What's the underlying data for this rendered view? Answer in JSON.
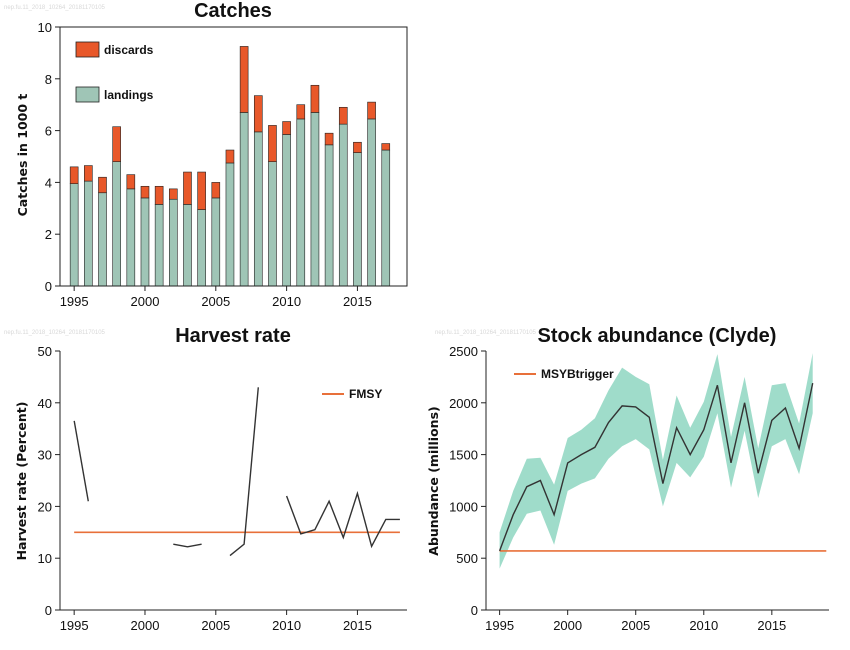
{
  "watermarks": [
    "nep.fu.11_2018_10264_20181170105",
    "nep.fu.11_2018_10264_20181170105",
    "nep.fu.11_2018_10264_20181170105"
  ],
  "colors": {
    "discards": "#e8582a",
    "landings": "#9fc5b6",
    "fmsy": "#e8703a",
    "msy": "#e8703a",
    "band": "#7fd0b8",
    "line": "#333333"
  },
  "chart_data": [
    {
      "type": "bar",
      "title": "Catches",
      "ylabel": "Catches in 1000 t",
      "xlim": [
        1994,
        2018.5
      ],
      "ylim": [
        0,
        10
      ],
      "xticks": [
        1995,
        2000,
        2005,
        2010,
        2015
      ],
      "yticks": [
        0,
        2,
        4,
        6,
        8,
        10
      ],
      "legend": "top-left",
      "categories": [
        1995,
        1996,
        1997,
        1998,
        1999,
        2000,
        2001,
        2002,
        2003,
        2004,
        2005,
        2006,
        2007,
        2008,
        2009,
        2010,
        2011,
        2012,
        2013,
        2014,
        2015,
        2016,
        2017
      ],
      "series": [
        {
          "name": "landings",
          "values": [
            3.95,
            4.05,
            3.6,
            4.8,
            3.75,
            3.4,
            3.15,
            3.35,
            3.15,
            2.95,
            3.4,
            4.75,
            6.7,
            5.95,
            4.8,
            5.85,
            6.45,
            6.7,
            5.45,
            6.25,
            5.15,
            6.45,
            5.25
          ]
        },
        {
          "name": "discards",
          "values": [
            0.65,
            0.6,
            0.6,
            1.35,
            0.55,
            0.45,
            0.7,
            0.4,
            1.25,
            1.45,
            0.6,
            0.5,
            2.55,
            1.4,
            1.4,
            0.5,
            0.55,
            1.05,
            0.45,
            0.65,
            0.4,
            0.65,
            0.25
          ]
        }
      ]
    },
    {
      "type": "line",
      "title": "Harvest rate",
      "ylabel": "Harvest rate (Percent)",
      "xlim": [
        1994,
        2018.5
      ],
      "ylim": [
        0,
        50
      ],
      "xticks": [
        1995,
        2000,
        2005,
        2010,
        2015
      ],
      "yticks": [
        0,
        10,
        20,
        30,
        40,
        50
      ],
      "legend": "top-right",
      "segments": [
        [
          [
            1995,
            36.5
          ],
          [
            1996,
            21
          ]
        ],
        [
          [
            2002,
            12.7
          ],
          [
            2003,
            12.2
          ],
          [
            2004,
            12.7
          ]
        ],
        [
          [
            2006,
            10.5
          ],
          [
            2007,
            12.7
          ],
          [
            2008,
            43
          ]
        ],
        [
          [
            2010,
            22
          ],
          [
            2011,
            14.7
          ],
          [
            2012,
            15.5
          ],
          [
            2013,
            21
          ],
          [
            2014,
            14
          ],
          [
            2015,
            22.5
          ],
          [
            2016,
            12.3
          ],
          [
            2017,
            17.5
          ],
          [
            2018,
            17.5
          ]
        ]
      ],
      "reference": {
        "name": "FMSY",
        "value": 15,
        "x": [
          1995,
          2018
        ]
      }
    },
    {
      "type": "area",
      "title": "Stock abundance (Clyde)",
      "ylabel": "Abundance (millions)",
      "xlim": [
        1994,
        2019.2
      ],
      "ylim": [
        0,
        2500
      ],
      "xticks": [
        1995,
        2000,
        2005,
        2010,
        2015
      ],
      "yticks": [
        0,
        500,
        1000,
        1500,
        2000,
        2500
      ],
      "legend": "top-left",
      "x": [
        1995,
        1996,
        1997,
        1998,
        1999,
        2000,
        2001,
        2002,
        2003,
        2004,
        2005,
        2006,
        2007,
        2008,
        2009,
        2010,
        2011,
        2012,
        2013,
        2014,
        2015,
        2016,
        2017,
        2018
      ],
      "series": [
        {
          "name": "estimate",
          "values": [
            570,
            920,
            1190,
            1250,
            920,
            1420,
            1500,
            1570,
            1810,
            1970,
            1960,
            1860,
            1220,
            1760,
            1500,
            1740,
            2170,
            1420,
            2000,
            1320,
            1830,
            1950,
            1560,
            2190
          ]
        },
        {
          "name": "lower",
          "values": [
            400,
            700,
            930,
            960,
            630,
            1150,
            1220,
            1270,
            1460,
            1580,
            1650,
            1550,
            1000,
            1420,
            1280,
            1480,
            1900,
            1180,
            1730,
            1080,
            1580,
            1650,
            1310,
            1900
          ]
        },
        {
          "name": "upper",
          "values": [
            750,
            1150,
            1460,
            1470,
            1210,
            1660,
            1740,
            1850,
            2120,
            2340,
            2250,
            2180,
            1450,
            2070,
            1760,
            2010,
            2470,
            1670,
            2250,
            1560,
            2170,
            2190,
            1800,
            2480
          ]
        }
      ],
      "reference": {
        "name": "MSYBtrigger",
        "value": 570,
        "x": [
          1995,
          2019
        ]
      }
    }
  ]
}
